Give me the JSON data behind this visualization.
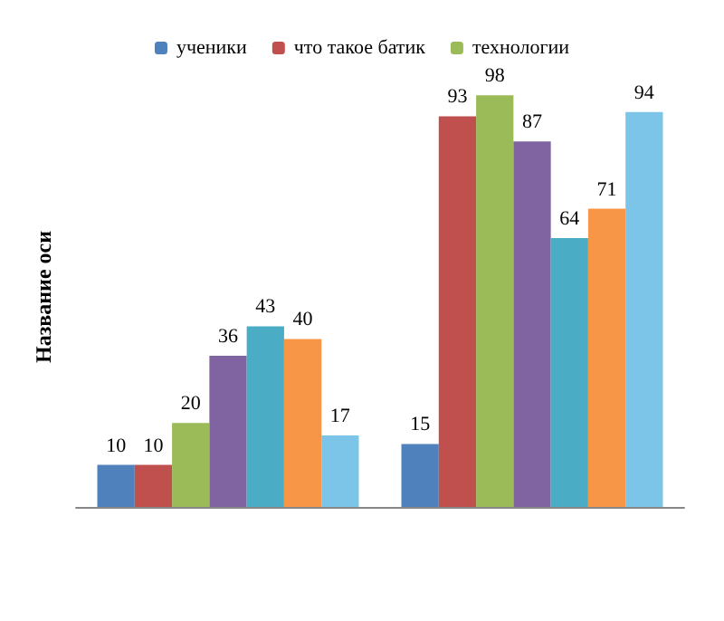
{
  "chart_data": {
    "type": "bar",
    "ylabel": "Название оси",
    "categories": [
      null,
      null
    ],
    "data_labels": true,
    "legend": "top",
    "grid": false,
    "series": [
      {
        "name": "ученики",
        "color": "#4f81bd",
        "values": [
          10,
          15
        ]
      },
      {
        "name": "что такое батик",
        "color": "#c0504d",
        "values": [
          10,
          93
        ]
      },
      {
        "name": "технологии",
        "color": "#9bbb59",
        "values": [
          20,
          98
        ]
      },
      {
        "color": "#8064a2",
        "values": [
          36,
          87
        ]
      },
      {
        "color": "#4bacc6",
        "values": [
          43,
          64
        ]
      },
      {
        "color": "#f79646",
        "values": [
          40,
          71
        ]
      },
      {
        "color": "#7cc4e8",
        "values": [
          17,
          94
        ]
      }
    ]
  }
}
